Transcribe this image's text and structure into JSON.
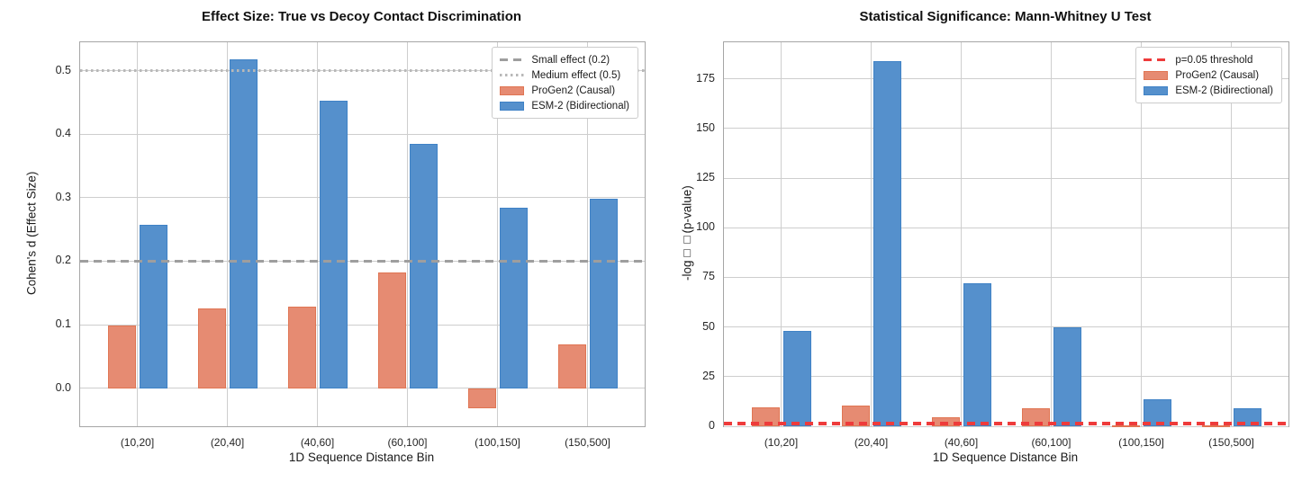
{
  "chart_data": [
    {
      "type": "bar",
      "title": "Effect Size: True vs Decoy Contact Discrimination",
      "xlabel": "1D Sequence Distance Bin",
      "ylabel": "Cohen's d (Effect Size)",
      "categories": [
        "(10,20]",
        "(20,40]",
        "(40,60]",
        "(60,100]",
        "(100,150]",
        "(150,500]"
      ],
      "series": [
        {
          "name": "ProGen2 (Causal)",
          "color": "#e68b72",
          "edge_color": "#e07553",
          "values": [
            0.098,
            0.126,
            0.128,
            0.182,
            -0.032,
            0.069
          ]
        },
        {
          "name": "ESM-2 (Bidirectional)",
          "color": "#5590cc",
          "edge_color": "#3f82c6",
          "values": [
            0.257,
            0.518,
            0.453,
            0.385,
            0.284,
            0.299
          ]
        }
      ],
      "ref_lines": [
        {
          "label": "Small effect (0.2)",
          "value": 0.2,
          "style": "dashed",
          "color": "#9e9e9e"
        },
        {
          "label": "Medium effect (0.5)",
          "value": 0.5,
          "style": "dotted",
          "color": "#b8b8b8"
        }
      ],
      "ylim": [
        -0.06,
        0.545
      ],
      "yticks": [
        {
          "label": "0.0",
          "value": 0.0
        },
        {
          "label": "0.1",
          "value": 0.1
        },
        {
          "label": "0.2",
          "value": 0.2
        },
        {
          "label": "0.3",
          "value": 0.3
        },
        {
          "label": "0.4",
          "value": 0.4
        },
        {
          "label": "0.5",
          "value": 0.5
        }
      ],
      "grid": true,
      "legend_position": "upper right"
    },
    {
      "type": "bar",
      "title": "Statistical Significance: Mann-Whitney U Test",
      "xlabel": "1D Sequence Distance Bin",
      "ylabel": "-log□□(p-value)",
      "categories": [
        "(10,20]",
        "(20,40]",
        "(40,60]",
        "(60,100]",
        "(100,150]",
        "(150,500]"
      ],
      "series": [
        {
          "name": "ProGen2 (Causal)",
          "color": "#e68b72",
          "edge_color": "#e07553",
          "values": [
            9.5,
            10.5,
            4.7,
            9.2,
            0.5,
            0.5
          ]
        },
        {
          "name": "ESM-2 (Bidirectional)",
          "color": "#5590cc",
          "edge_color": "#3f82c6",
          "values": [
            48,
            184,
            72,
            50,
            13.7,
            9
          ]
        }
      ],
      "ref_lines": [
        {
          "label": "p=0.05 threshold",
          "value": 1.3,
          "style": "dashed",
          "color": "#ee3b3b"
        }
      ],
      "ylim": [
        0,
        193.5
      ],
      "yticks": [
        {
          "label": "0",
          "value": 0
        },
        {
          "label": "25",
          "value": 25
        },
        {
          "label": "50",
          "value": 50
        },
        {
          "label": "75",
          "value": 75
        },
        {
          "label": "100",
          "value": 100
        },
        {
          "label": "125",
          "value": 125
        },
        {
          "label": "150",
          "value": 150
        },
        {
          "label": "175",
          "value": 175
        }
      ],
      "grid": true,
      "legend_position": "upper right"
    }
  ]
}
